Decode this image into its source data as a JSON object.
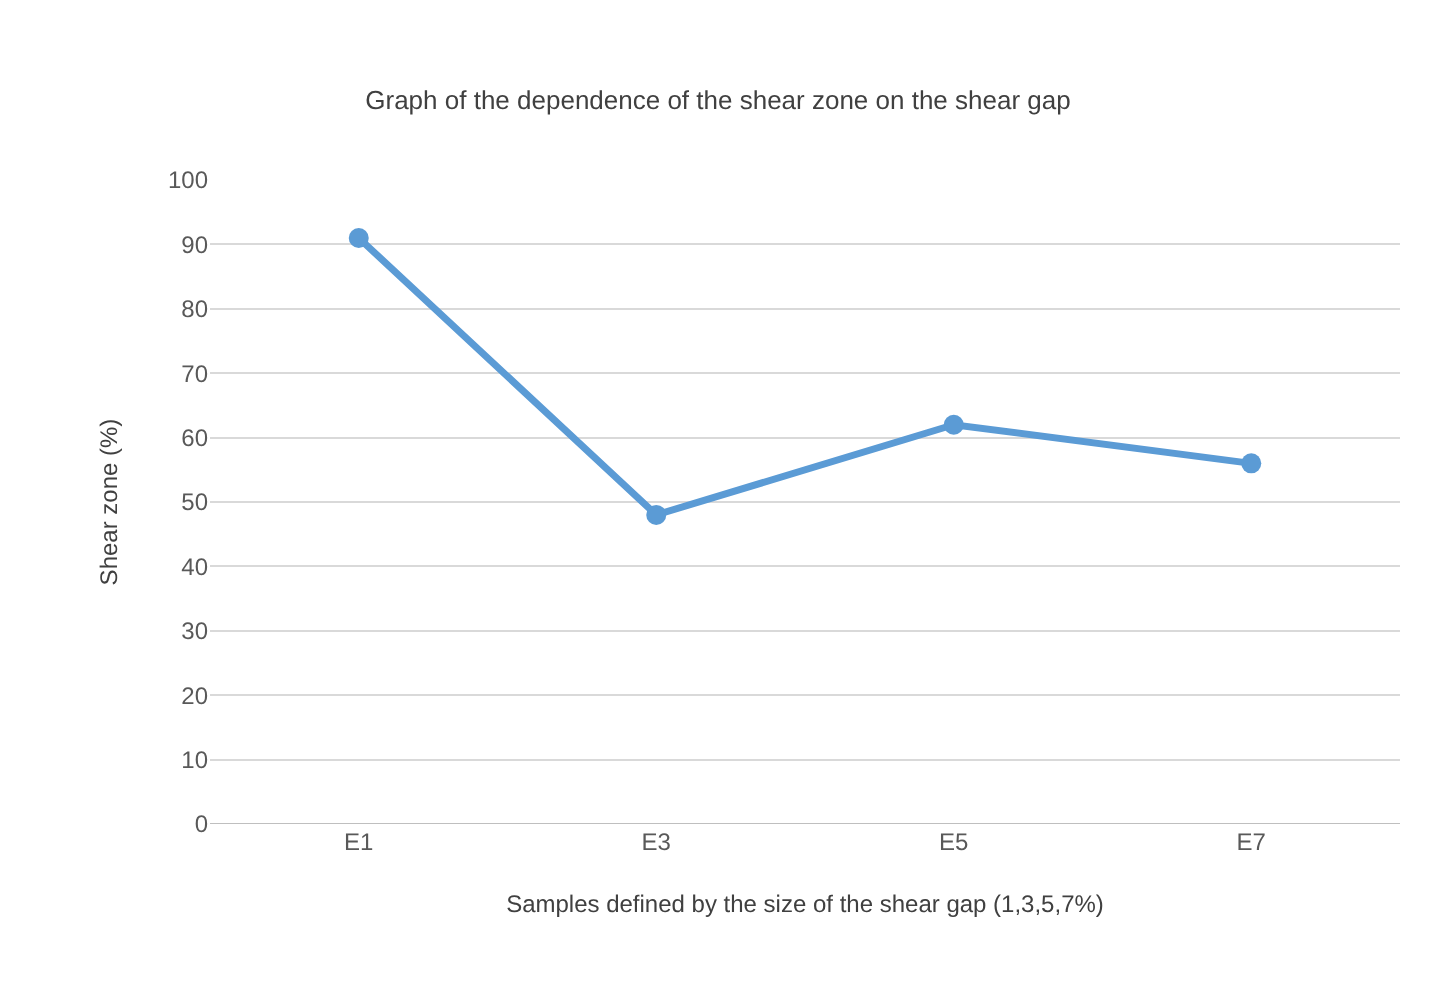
{
  "chart_data": {
    "type": "line",
    "title": "Graph of the dependence of the shear zone on the shear gap",
    "xlabel": "Samples defined by the size of the shear gap (1,3,5,7%)",
    "ylabel": "Shear zone (%)",
    "categories": [
      "E1",
      "E3",
      "E5",
      "E7"
    ],
    "series": [
      {
        "color": "#5b9bd5",
        "values": [
          91,
          48,
          62,
          56
        ]
      }
    ],
    "ylim": [
      0,
      100
    ],
    "yticks": [
      0,
      10,
      20,
      30,
      40,
      50,
      60,
      70,
      80,
      90,
      100
    ],
    "grid": "y",
    "marker": "circle",
    "line_style": "solid"
  }
}
